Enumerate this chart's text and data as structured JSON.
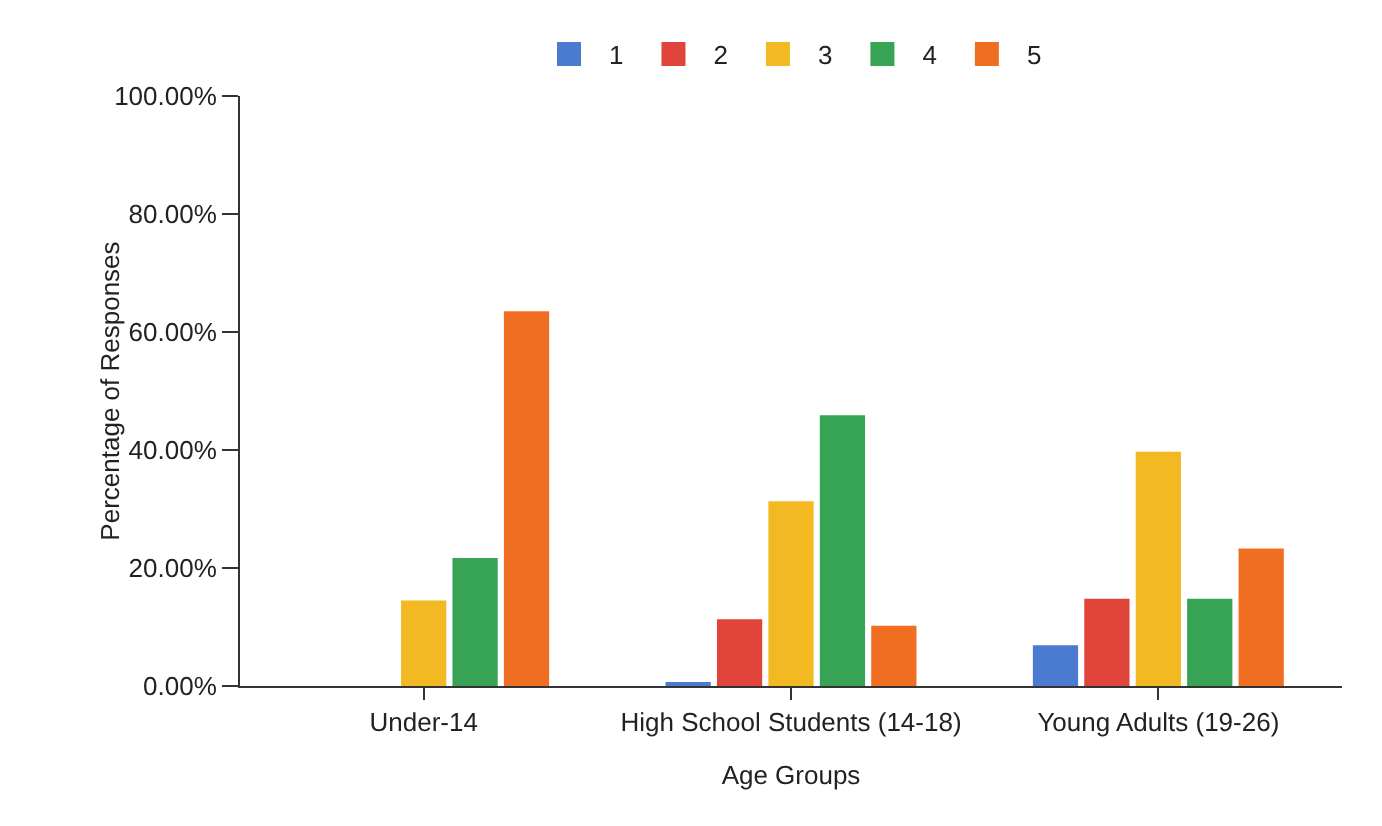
{
  "chart_data": {
    "type": "bar",
    "xlabel": "Age Groups",
    "ylabel": "Percentage of Responses",
    "categories": [
      "Under-14",
      "High School Students (14-18)",
      "Young Adults (19-26)"
    ],
    "series": [
      {
        "name": "1",
        "color": "#4a7bd0",
        "values": [
          0,
          0.6,
          6.9
        ]
      },
      {
        "name": "2",
        "color": "#e0443a",
        "values": [
          0,
          11.3,
          14.8
        ]
      },
      {
        "name": "3",
        "color": "#f2b923",
        "values": [
          14.5,
          31.3,
          39.7
        ]
      },
      {
        "name": "4",
        "color": "#36a355",
        "values": [
          21.7,
          45.9,
          14.8
        ]
      },
      {
        "name": "5",
        "color": "#f06e22",
        "values": [
          63.5,
          10.2,
          23.3
        ]
      }
    ],
    "ylim": [
      0,
      100
    ],
    "yticks": [
      {
        "value": 0,
        "label": "0.00%"
      },
      {
        "value": 20,
        "label": "20.00%"
      },
      {
        "value": 40,
        "label": "40.00%"
      },
      {
        "value": 60,
        "label": "60.00%"
      },
      {
        "value": 80,
        "label": "80.00%"
      },
      {
        "value": 100,
        "label": "100.00%"
      }
    ],
    "grid": false,
    "legend": "top"
  }
}
